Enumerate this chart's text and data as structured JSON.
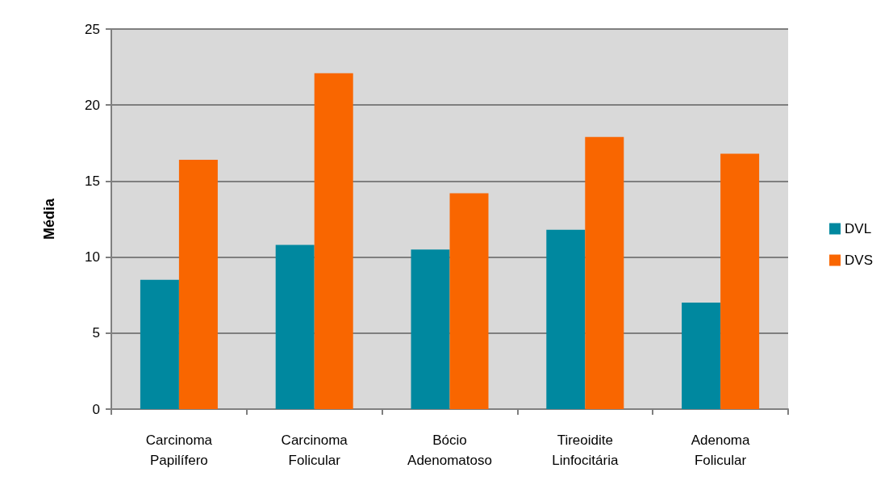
{
  "chart_data": {
    "type": "bar",
    "ylabel": "Média",
    "categories": [
      "Carcinoma\nPapilífero",
      "Carcinoma\nFolicular",
      "Bócio\nAdenomatoso",
      "Tireoidite\nLinfocitária",
      "Adenoma\nFolicular"
    ],
    "series": [
      {
        "name": "DVL",
        "color": "#00889f",
        "values": [
          8.5,
          10.8,
          10.5,
          11.8,
          7.0
        ]
      },
      {
        "name": "DVS",
        "color": "#f96600",
        "values": [
          16.4,
          22.1,
          14.2,
          17.9,
          16.8
        ]
      }
    ],
    "ylim": [
      0,
      25
    ],
    "yticks": [
      0,
      5,
      10,
      15,
      20,
      25
    ],
    "grid": "y",
    "legend": "right"
  }
}
